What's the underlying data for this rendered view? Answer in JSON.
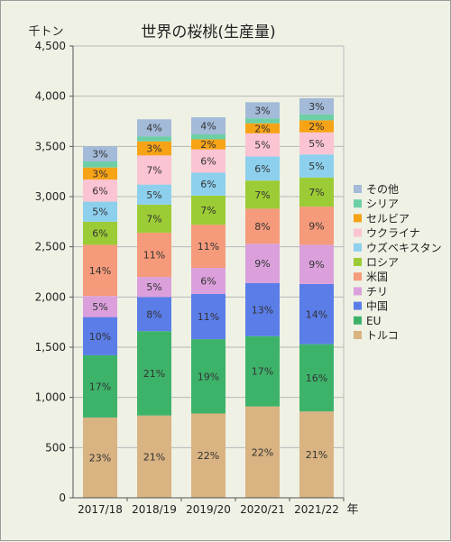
{
  "chart_data": {
    "type": "bar",
    "stacked": true,
    "title": "世界の桜桃(生産量)",
    "ylabel": "千トン",
    "xlabel": "年",
    "ylim": [
      0,
      4500
    ],
    "yticks": [
      0,
      500,
      1000,
      1500,
      2000,
      2500,
      3000,
      3500,
      4000,
      4500
    ],
    "ytick_labels": [
      "0",
      "500",
      "1,000",
      "1,500",
      "2,000",
      "2,500",
      "3,000",
      "3,500",
      "4,000",
      "4,500"
    ],
    "grid": true,
    "legend_position": "right",
    "categories": [
      "2017/18",
      "2018/19",
      "2019/20",
      "2020/21",
      "2021/22"
    ],
    "series": [
      {
        "name": "トルコ",
        "color": "#d9b382",
        "values": [
          800,
          820,
          840,
          910,
          860
        ],
        "labels": [
          "23%",
          "21%",
          "22%",
          "22%",
          "21%"
        ]
      },
      {
        "name": "EU",
        "color": "#3db36a",
        "values": [
          620,
          840,
          740,
          700,
          670
        ],
        "labels": [
          "17%",
          "21%",
          "19%",
          "17%",
          "16%"
        ]
      },
      {
        "name": "中国",
        "color": "#5b7de8",
        "values": [
          380,
          340,
          450,
          530,
          600
        ],
        "labels": [
          "10%",
          "8%",
          "11%",
          "13%",
          "14%"
        ]
      },
      {
        "name": "チリ",
        "color": "#dba0dc",
        "values": [
          210,
          200,
          260,
          390,
          390
        ],
        "labels": [
          "5%",
          "5%",
          "6%",
          "9%",
          "9%"
        ]
      },
      {
        "name": "米国",
        "color": "#f59a7a",
        "values": [
          510,
          440,
          430,
          350,
          380
        ],
        "labels": [
          "14%",
          "11%",
          "11%",
          "8%",
          "9%"
        ]
      },
      {
        "name": "ロシア",
        "color": "#9ccc35",
        "values": [
          230,
          280,
          290,
          280,
          290
        ],
        "labels": [
          "6%",
          "7%",
          "7%",
          "7%",
          "7%"
        ]
      },
      {
        "name": "ウズベキスタン",
        "color": "#8dd0ee",
        "values": [
          200,
          200,
          230,
          240,
          230
        ],
        "labels": [
          "5%",
          "5%",
          "6%",
          "6%",
          "5%"
        ]
      },
      {
        "name": "ウクライナ",
        "color": "#fbc4d2",
        "values": [
          220,
          290,
          230,
          230,
          220
        ],
        "labels": [
          "6%",
          "7%",
          "6%",
          "5%",
          "5%"
        ]
      },
      {
        "name": "セルビア",
        "color": "#f7a316",
        "values": [
          120,
          140,
          100,
          100,
          120
        ],
        "labels": [
          "3%",
          "3%",
          "2%",
          "2%",
          "2%"
        ]
      },
      {
        "name": "シリア",
        "color": "#6dcfa6",
        "values": [
          60,
          50,
          50,
          50,
          60
        ],
        "labels": [
          "",
          "",
          "",
          "",
          ""
        ]
      },
      {
        "name": "その他",
        "color": "#a3bad8",
        "values": [
          150,
          170,
          170,
          160,
          160
        ],
        "labels": [
          "3%",
          "4%",
          "4%",
          "3%",
          "3%"
        ]
      }
    ]
  }
}
